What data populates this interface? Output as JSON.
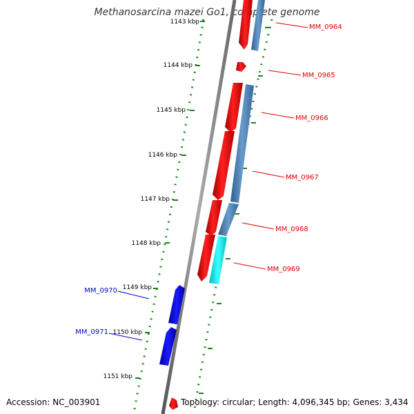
{
  "title": "Methanosarcina mazei Go1, complete genome",
  "footer": {
    "accession": "Accession: NC_003901",
    "topology": "Topology: circular; Length: 4,096,345 bp; Genes: 3,434"
  },
  "ticks": [
    "1143 kbp",
    "1144 kbp",
    "1145 kbp",
    "1146 kbp",
    "1147 kbp",
    "1148 kbp",
    "1149 kbp",
    "1150 kbp",
    "1151 kbp"
  ],
  "genes": [
    {
      "id": "MM_0964",
      "color": "#dd0000"
    },
    {
      "id": "MM_0965",
      "color": "#dd0000"
    },
    {
      "id": "MM_0966",
      "color": "#dd0000"
    },
    {
      "id": "MM_0967",
      "color": "#dd0000"
    },
    {
      "id": "MM_0968",
      "color": "#dd0000"
    },
    {
      "id": "MM_0969",
      "color": "#dd0000"
    },
    {
      "id": "MM_0970",
      "color": "#0000cc"
    },
    {
      "id": "MM_0971",
      "color": "#0000cc"
    }
  ],
  "colors": {
    "forward_gene": "#ff0000",
    "reverse_gene": "#0000ee",
    "cds_blue": "#4682b4",
    "cds_cyan": "#00e5ee",
    "backbone": "#888888",
    "tick_green": "#1a7f1a"
  }
}
